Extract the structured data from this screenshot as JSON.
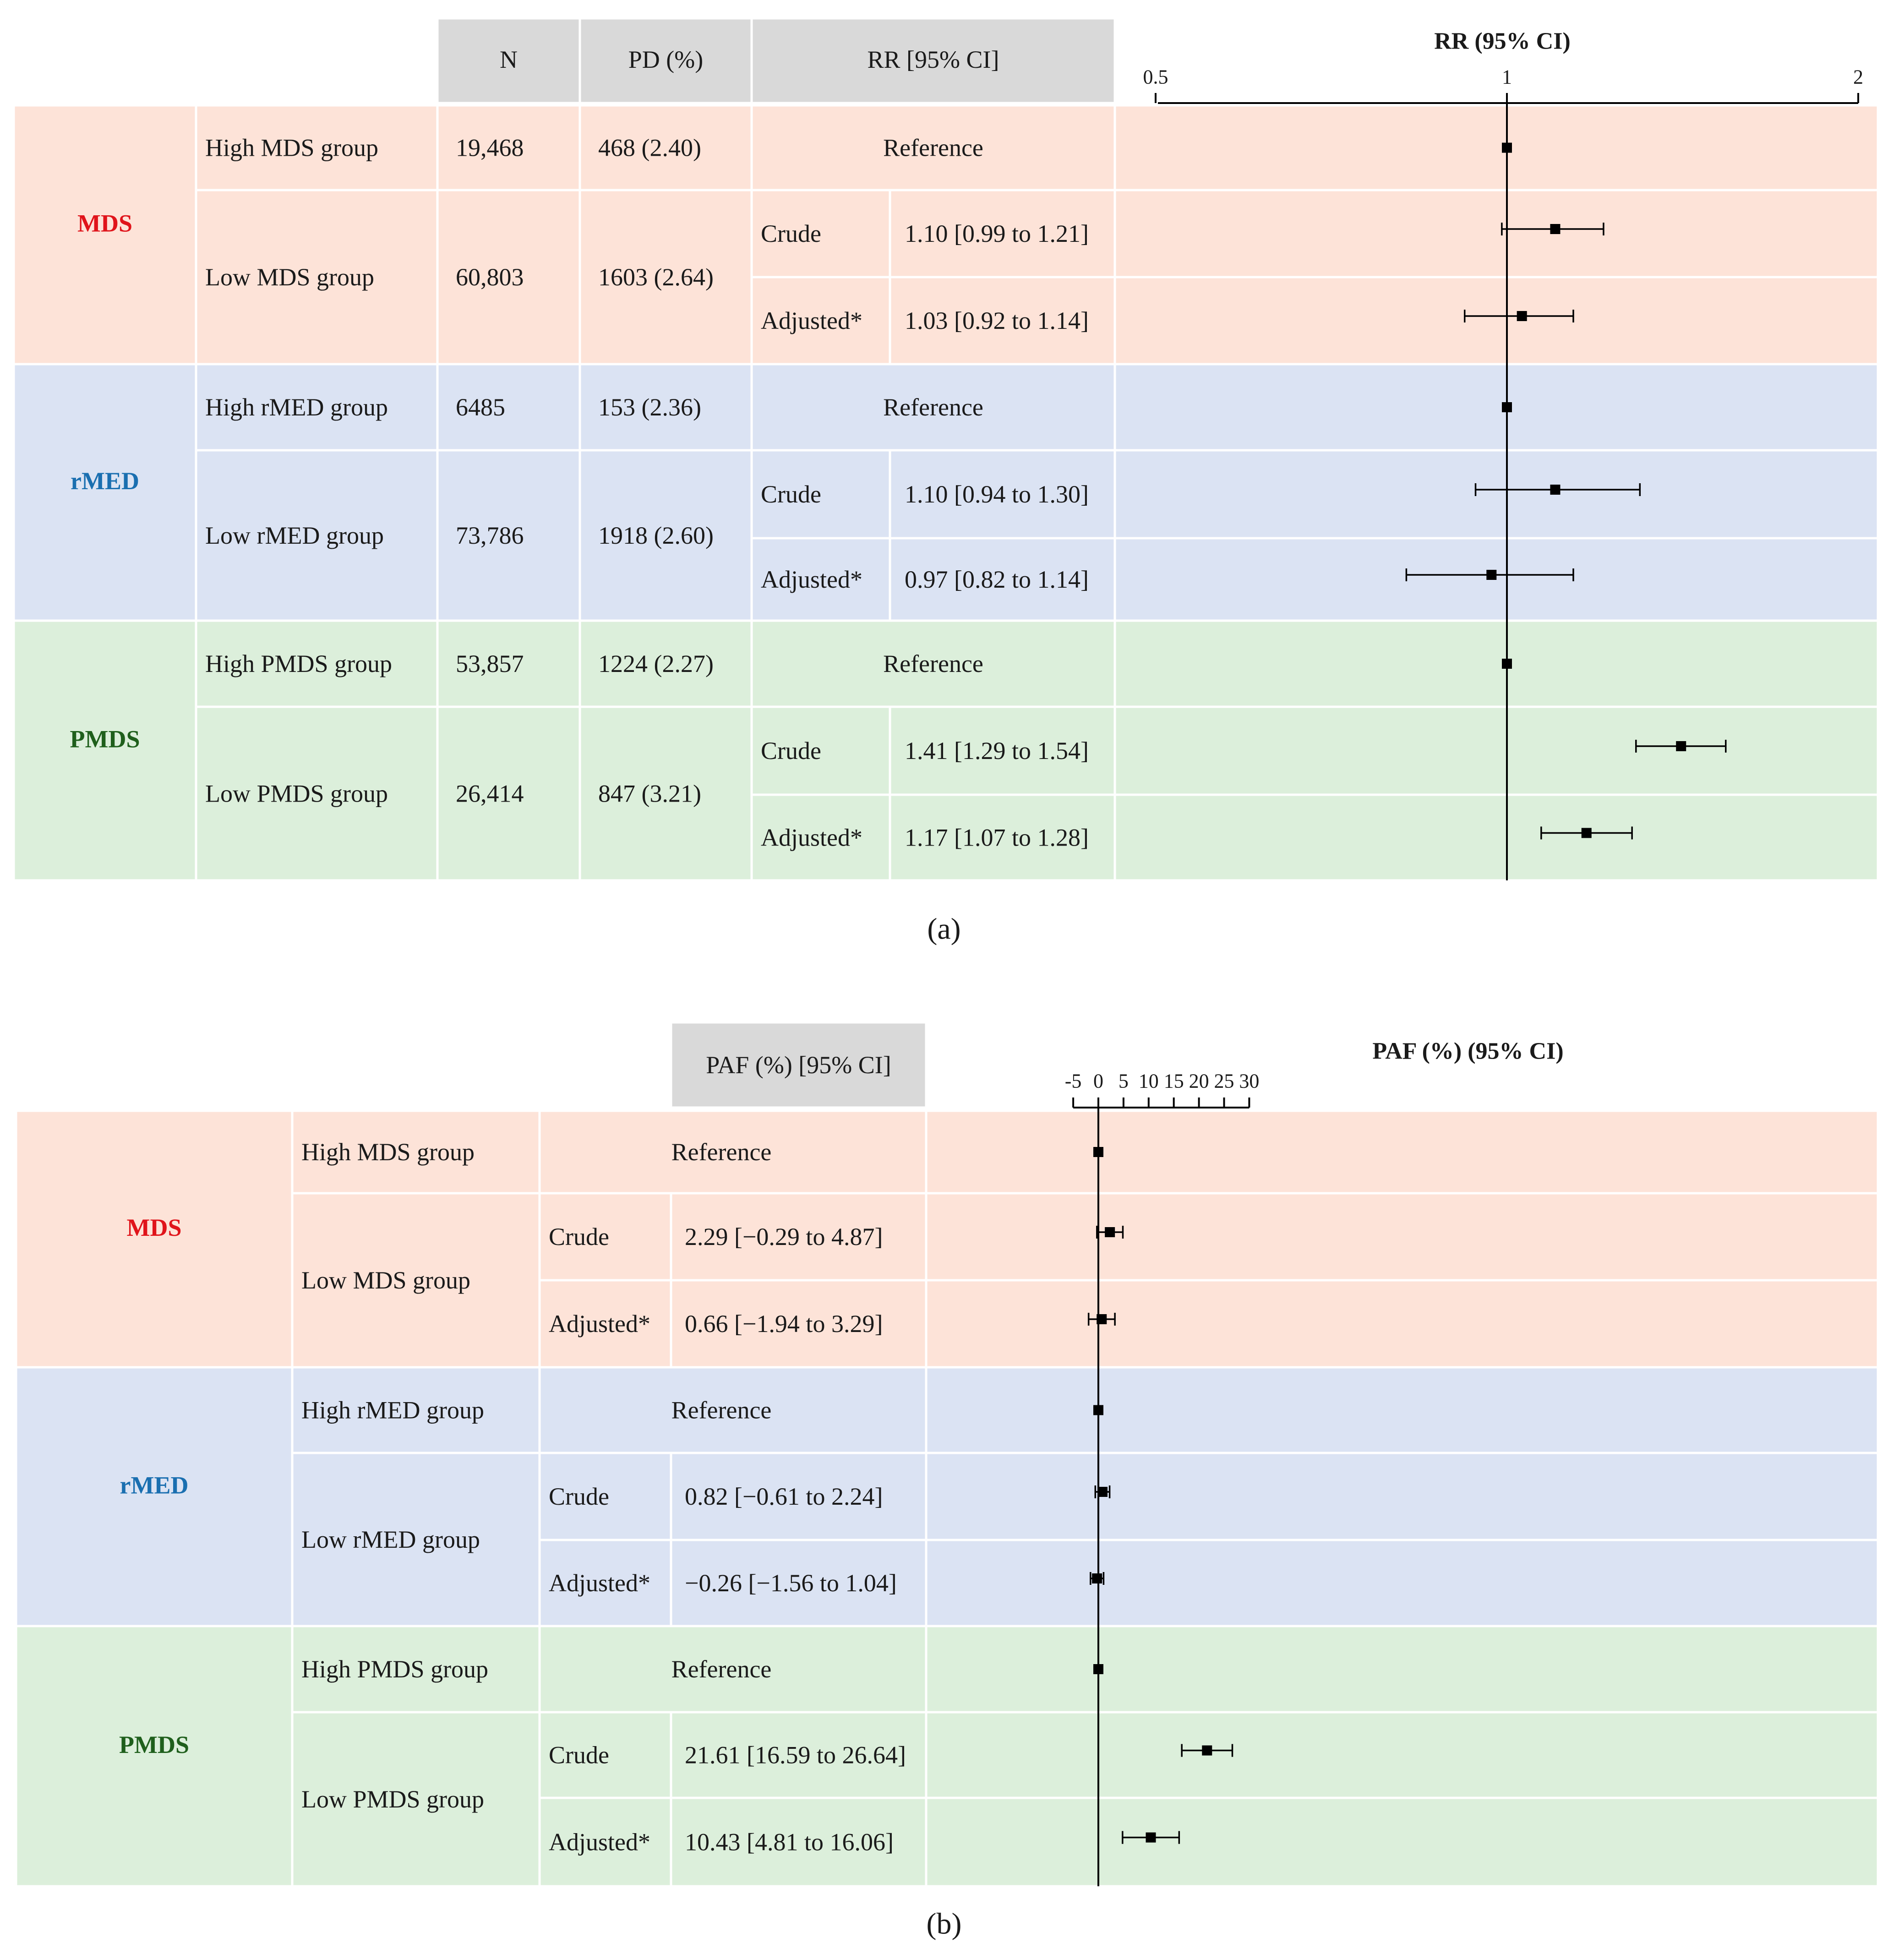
{
  "colors": {
    "mds_bg": "#fde3d8",
    "rmed_bg": "#dbe3f3",
    "pmds_bg": "#dcefdb",
    "header_bg": "#d9d9d9",
    "mds_text": "#e0141b",
    "rmed_text": "#1a6fb0",
    "pmds_text": "#1f5f1c"
  },
  "chart_data": [
    {
      "type": "forest",
      "panel_label": "a",
      "title": "RR (95% CI)",
      "scale": "log",
      "xlim": [
        0.5,
        2
      ],
      "ticks": [
        0.5,
        1,
        2
      ],
      "tick_labels": [
        "0.5",
        "1",
        "2"
      ],
      "reference_line": 1,
      "columns": [
        "N",
        "PD (%)",
        "RR [95% CI]"
      ],
      "groups": [
        {
          "name": "MDS",
          "color_key": "mds",
          "rows": [
            {
              "label": "High MDS group",
              "n": "19,468",
              "pd": "468 (2.40)",
              "reference": "Reference",
              "est": 1.0
            },
            {
              "label": "Low MDS group",
              "n": "60,803",
              "pd": "1603 (2.64)",
              "sub": [
                {
                  "type": "Crude",
                  "text": "1.10 [0.99 to 1.21]",
                  "est": 1.1,
                  "lo": 0.99,
                  "hi": 1.21
                },
                {
                  "type": "Adjusted*",
                  "text": "1.03 [0.92 to 1.14]",
                  "est": 1.03,
                  "lo": 0.92,
                  "hi": 1.14
                }
              ]
            }
          ]
        },
        {
          "name": "rMED",
          "color_key": "rmed",
          "rows": [
            {
              "label": "High rMED group",
              "n": "6485",
              "pd": "153 (2.36)",
              "reference": "Reference",
              "est": 1.0
            },
            {
              "label": "Low rMED group",
              "n": "73,786",
              "pd": "1918 (2.60)",
              "sub": [
                {
                  "type": "Crude",
                  "text": "1.10 [0.94 to 1.30]",
                  "est": 1.1,
                  "lo": 0.94,
                  "hi": 1.3
                },
                {
                  "type": "Adjusted*",
                  "text": "0.97 [0.82 to 1.14]",
                  "est": 0.97,
                  "lo": 0.82,
                  "hi": 1.14
                }
              ]
            }
          ]
        },
        {
          "name": "PMDS",
          "color_key": "pmds",
          "rows": [
            {
              "label": "High PMDS group",
              "n": "53,857",
              "pd": "1224 (2.27)",
              "reference": "Reference",
              "est": 1.0
            },
            {
              "label": "Low PMDS group",
              "n": "26,414",
              "pd": "847 (3.21)",
              "sub": [
                {
                  "type": "Crude",
                  "text": "1.41 [1.29 to 1.54]",
                  "est": 1.41,
                  "lo": 1.29,
                  "hi": 1.54
                },
                {
                  "type": "Adjusted*",
                  "text": "1.17 [1.07 to 1.28]",
                  "est": 1.17,
                  "lo": 1.07,
                  "hi": 1.28
                }
              ]
            }
          ]
        }
      ]
    },
    {
      "type": "forest",
      "panel_label": "b",
      "title": "PAF (%)  (95% CI)",
      "scale": "linear",
      "xlim": [
        -5,
        30
      ],
      "ticks": [
        -5,
        0,
        5,
        10,
        15,
        20,
        25,
        30
      ],
      "tick_labels": [
        "-5",
        "0",
        "5",
        "10",
        "15",
        "20",
        "25",
        "30"
      ],
      "reference_line": 0,
      "columns": [
        "PAF (%) [95% CI]"
      ],
      "groups": [
        {
          "name": "MDS",
          "color_key": "mds",
          "rows": [
            {
              "label": "High MDS group",
              "reference": "Reference",
              "est": 0
            },
            {
              "label": "Low MDS group",
              "sub": [
                {
                  "type": "Crude",
                  "text": "2.29 [−0.29 to 4.87]",
                  "est": 2.29,
                  "lo": -0.29,
                  "hi": 4.87
                },
                {
                  "type": "Adjusted*",
                  "text": "0.66 [−1.94 to 3.29]",
                  "est": 0.66,
                  "lo": -1.94,
                  "hi": 3.29
                }
              ]
            }
          ]
        },
        {
          "name": "rMED",
          "color_key": "rmed",
          "rows": [
            {
              "label": "High rMED group",
              "reference": "Reference",
              "est": 0
            },
            {
              "label": "Low rMED group",
              "sub": [
                {
                  "type": "Crude",
                  "text": "0.82 [−0.61 to 2.24]",
                  "est": 0.82,
                  "lo": -0.61,
                  "hi": 2.24
                },
                {
                  "type": "Adjusted*",
                  "text": "−0.26 [−1.56 to 1.04]",
                  "est": -0.26,
                  "lo": -1.56,
                  "hi": 1.04
                }
              ]
            }
          ]
        },
        {
          "name": "PMDS",
          "color_key": "pmds",
          "rows": [
            {
              "label": "High PMDS group",
              "reference": "Reference",
              "est": 0
            },
            {
              "label": "Low PMDS group",
              "sub": [
                {
                  "type": "Crude",
                  "text": "21.61 [16.59 to 26.64]",
                  "est": 21.61,
                  "lo": 16.59,
                  "hi": 26.64
                },
                {
                  "type": "Adjusted*",
                  "text": "10.43 [4.81 to 16.06]",
                  "est": 10.43,
                  "lo": 4.81,
                  "hi": 16.06
                }
              ]
            }
          ]
        }
      ]
    }
  ]
}
